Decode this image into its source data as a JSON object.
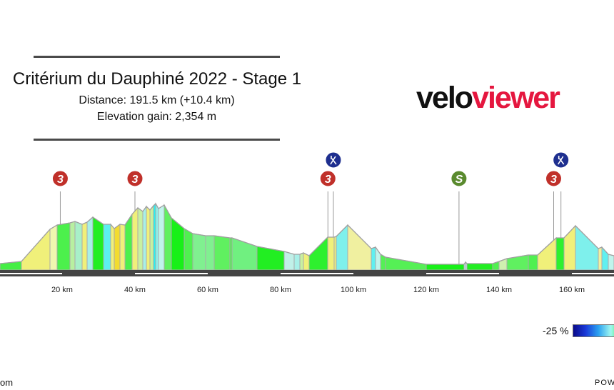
{
  "header": {
    "title": "Critérium du Dauphiné 2022 - Stage 1",
    "distance": "Distance: 191.5 km (+10.4 km)",
    "elevation": "Elevation gain: 2,354 m"
  },
  "logo": {
    "part1": "velo",
    "part2": "viewer",
    "brand_color": "#e5173f"
  },
  "chart_data": {
    "type": "area",
    "title": "Critérium du Dauphiné 2022 - Stage 1",
    "xlabel": "",
    "ylabel": "",
    "x_unit": "km",
    "x_ticks": [
      "20 km",
      "40 km",
      "60 km",
      "80 km",
      "100 km",
      "120 km",
      "140 km",
      "160 km"
    ],
    "markers": [
      {
        "type": "climb",
        "label": "3",
        "km": 19.5,
        "color": "#c0302a"
      },
      {
        "type": "climb",
        "label": "3",
        "km": 40,
        "color": "#c0302a"
      },
      {
        "type": "climb",
        "label": "3",
        "km": 93,
        "color": "#c0302a"
      },
      {
        "type": "feed-zone",
        "label": "",
        "km": 94.5,
        "color": "#1e2f8f"
      },
      {
        "type": "sprint",
        "label": "S",
        "km": 129,
        "color": "#5a8a2e"
      },
      {
        "type": "climb",
        "label": "3",
        "km": 155,
        "color": "#c0302a"
      },
      {
        "type": "feed-zone",
        "label": "",
        "km": 157,
        "color": "#1e2f8f"
      }
    ],
    "grid": false
  },
  "legend": {
    "min_label": "-25 %"
  },
  "footer": {
    "left": "om",
    "right": "POWERED"
  }
}
